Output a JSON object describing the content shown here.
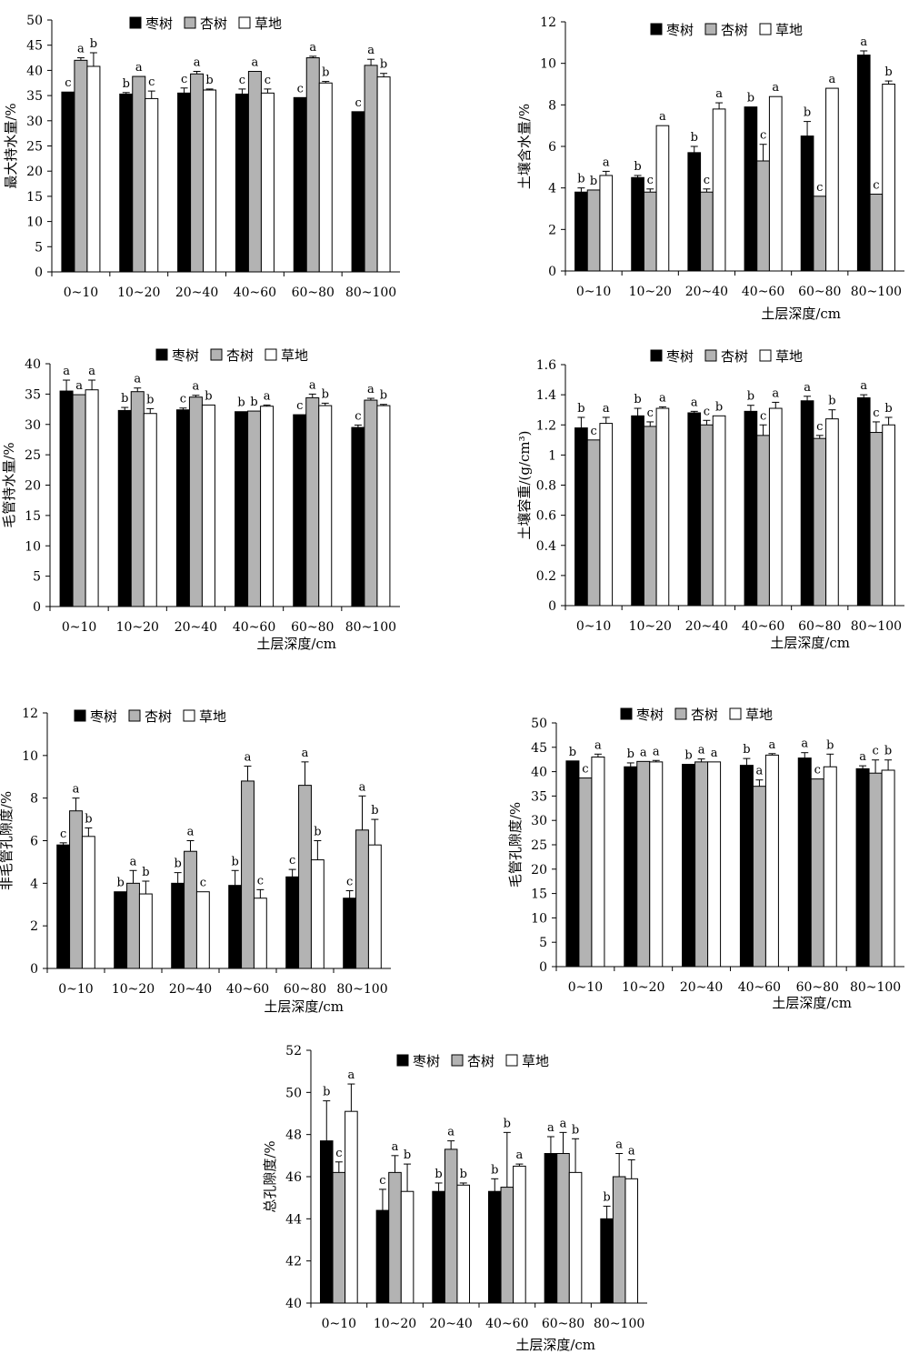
{
  "legend_labels": [
    "枣树",
    "杏树",
    "草地"
  ],
  "series_colors": [
    "#000000",
    "#b3b3b3",
    "#ffffff"
  ],
  "chart_data": [
    {
      "id": "max-water-holding",
      "type": "bar",
      "ylabel": "最大持水量/%",
      "xlabel": "",
      "ylim": [
        0,
        50
      ],
      "yticks": [
        0,
        5,
        10,
        15,
        20,
        25,
        30,
        35,
        40,
        45,
        50
      ],
      "categories": [
        "0~10",
        "10~20",
        "20~40",
        "40~60",
        "60~80",
        "80~100"
      ],
      "series": [
        {
          "name": "枣树",
          "values": [
            35.7,
            35.3,
            35.5,
            35.3,
            34.6,
            31.8
          ],
          "errors": [
            0,
            0.3,
            1.0,
            1.0,
            0,
            0
          ],
          "letters": [
            "c",
            "b",
            "c",
            "c",
            "c",
            "c"
          ]
        },
        {
          "name": "杏树",
          "values": [
            42.0,
            38.8,
            39.3,
            39.8,
            42.5,
            41.0
          ],
          "errors": [
            0.5,
            0,
            0.5,
            0,
            0.3,
            1.2
          ],
          "letters": [
            "a",
            "a",
            "a",
            "a",
            "a",
            "a"
          ]
        },
        {
          "name": "草地",
          "values": [
            40.8,
            34.4,
            36.1,
            35.5,
            37.5,
            38.7
          ],
          "errors": [
            2.7,
            1.5,
            0.2,
            0.8,
            0.3,
            0.7
          ],
          "letters": [
            "b",
            "c",
            "b",
            "c",
            "b",
            "b"
          ]
        }
      ]
    },
    {
      "id": "soil-water-content",
      "type": "bar",
      "ylabel": "土壤含水量/%",
      "xlabel": "土层深度/cm",
      "ylim": [
        0,
        12
      ],
      "yticks": [
        0,
        2,
        4,
        6,
        8,
        10,
        12
      ],
      "categories": [
        "0~10",
        "10~20",
        "20~40",
        "40~60",
        "60~80",
        "80~100"
      ],
      "series": [
        {
          "name": "枣树",
          "values": [
            3.8,
            4.5,
            5.7,
            7.9,
            6.5,
            10.4
          ],
          "errors": [
            0.2,
            0.1,
            0.3,
            0,
            0.7,
            0.2
          ],
          "letters": [
            "b",
            "b",
            "b",
            "b",
            "b",
            "a"
          ]
        },
        {
          "name": "杏树",
          "values": [
            3.9,
            3.8,
            3.8,
            5.3,
            3.6,
            3.7
          ],
          "errors": [
            0,
            0.15,
            0.15,
            0.8,
            0,
            0
          ],
          "letters": [
            "b",
            "c",
            "c",
            "c",
            "c",
            "c"
          ]
        },
        {
          "name": "草地",
          "values": [
            4.6,
            7.0,
            7.8,
            8.4,
            8.8,
            9.0
          ],
          "errors": [
            0.2,
            0,
            0.3,
            0,
            0,
            0.15
          ],
          "letters": [
            "a",
            "a",
            "a",
            "a",
            "a",
            "b"
          ]
        }
      ]
    },
    {
      "id": "capillary-water-holding",
      "type": "bar",
      "ylabel": "毛管持水量/%",
      "xlabel": "土层深度/cm",
      "ylim": [
        0,
        40
      ],
      "yticks": [
        0,
        5,
        10,
        15,
        20,
        25,
        30,
        35,
        40
      ],
      "categories": [
        "0~10",
        "10~20",
        "20~40",
        "40~60",
        "60~80",
        "80~100"
      ],
      "series": [
        {
          "name": "枣树",
          "values": [
            35.5,
            32.3,
            32.4,
            32.1,
            31.6,
            29.5
          ],
          "errors": [
            1.8,
            0.5,
            0.3,
            0,
            0,
            0.4
          ],
          "letters": [
            "a",
            "b",
            "c",
            "b",
            "c",
            "c"
          ]
        },
        {
          "name": "杏树",
          "values": [
            34.9,
            35.4,
            34.5,
            32.2,
            34.4,
            34.0
          ],
          "errors": [
            0,
            0.6,
            0.3,
            0,
            0.6,
            0.3
          ],
          "letters": [
            "a",
            "a",
            "a",
            "b",
            "a",
            "a"
          ]
        },
        {
          "name": "草地",
          "values": [
            35.7,
            31.8,
            33.2,
            33.0,
            33.1,
            33.1
          ],
          "errors": [
            1.6,
            0.8,
            0,
            0.2,
            0.4,
            0.2
          ],
          "letters": [
            "a",
            "b",
            "b",
            "a",
            "b",
            "b"
          ]
        }
      ]
    },
    {
      "id": "bulk-density",
      "type": "bar",
      "ylabel": "土壤容重/(g/cm³)",
      "xlabel": "土层深度/cm",
      "ylim": [
        0,
        1.6
      ],
      "yticks": [
        0,
        0.2,
        0.4,
        0.6,
        0.8,
        1,
        1.2,
        1.4,
        1.6
      ],
      "categories": [
        "0~10",
        "10~20",
        "20~40",
        "40~60",
        "60~80",
        "80~100"
      ],
      "series": [
        {
          "name": "枣树",
          "values": [
            1.18,
            1.26,
            1.28,
            1.29,
            1.36,
            1.38
          ],
          "errors": [
            0.07,
            0.05,
            0.01,
            0.04,
            0.03,
            0.02
          ],
          "letters": [
            "b",
            "b",
            "a",
            "b",
            "a",
            "a"
          ]
        },
        {
          "name": "杏树",
          "values": [
            1.1,
            1.19,
            1.2,
            1.13,
            1.11,
            1.15
          ],
          "errors": [
            0,
            0.03,
            0.03,
            0.07,
            0.02,
            0.07
          ],
          "letters": [
            "c",
            "c",
            "c",
            "c",
            "c",
            "c"
          ]
        },
        {
          "name": "草地",
          "values": [
            1.21,
            1.31,
            1.26,
            1.31,
            1.24,
            1.2
          ],
          "errors": [
            0.04,
            0.01,
            0,
            0.04,
            0.06,
            0.05
          ],
          "letters": [
            "a",
            "a",
            "b",
            "a",
            "b",
            "b"
          ]
        }
      ]
    },
    {
      "id": "non-capillary-porosity",
      "type": "bar",
      "ylabel": "非毛管孔隙度/%",
      "xlabel": "土层深度/cm",
      "ylim": [
        0,
        12
      ],
      "yticks": [
        0,
        2,
        4,
        6,
        8,
        10,
        12
      ],
      "categories": [
        "0~10",
        "10~20",
        "20~40",
        "40~60",
        "60~80",
        "80~100"
      ],
      "series": [
        {
          "name": "枣树",
          "values": [
            5.8,
            3.6,
            4.0,
            3.9,
            4.3,
            3.3
          ],
          "errors": [
            0.1,
            0,
            0.5,
            0.7,
            0.35,
            0.35
          ],
          "letters": [
            "c",
            "b",
            "b",
            "b",
            "c",
            "c"
          ]
        },
        {
          "name": "杏树",
          "values": [
            7.4,
            4.0,
            5.5,
            8.8,
            8.6,
            6.5
          ],
          "errors": [
            0.6,
            0.6,
            0.5,
            0.7,
            1.1,
            1.6
          ],
          "letters": [
            "a",
            "a",
            "a",
            "a",
            "a",
            "a"
          ]
        },
        {
          "name": "草地",
          "values": [
            6.2,
            3.5,
            3.6,
            3.3,
            5.1,
            5.8
          ],
          "errors": [
            0.4,
            0.6,
            0,
            0.4,
            0.9,
            1.2
          ],
          "letters": [
            "b",
            "b",
            "c",
            "c",
            "b",
            "b"
          ]
        }
      ]
    },
    {
      "id": "capillary-porosity",
      "type": "bar",
      "ylabel": "毛管孔隙度/%",
      "xlabel": "土层深度/cm",
      "ylim": [
        0,
        50
      ],
      "yticks": [
        0,
        5,
        10,
        15,
        20,
        25,
        30,
        35,
        40,
        45,
        50
      ],
      "categories": [
        "0~10",
        "10~20",
        "20~40",
        "40~60",
        "60~80",
        "80~100"
      ],
      "series": [
        {
          "name": "枣树",
          "values": [
            42.2,
            41.0,
            41.5,
            41.3,
            42.8,
            40.6
          ],
          "errors": [
            0,
            0.8,
            0,
            1.4,
            1.1,
            0.6
          ],
          "letters": [
            "b",
            "b",
            "b",
            "b",
            "a",
            "a"
          ]
        },
        {
          "name": "杏树",
          "values": [
            38.7,
            42.1,
            42.0,
            37.0,
            38.5,
            39.7
          ],
          "errors": [
            0,
            0,
            0.6,
            1.3,
            0,
            2.7
          ],
          "letters": [
            "c",
            "a",
            "a",
            "a",
            "c",
            "c"
          ]
        },
        {
          "name": "草地",
          "values": [
            43.0,
            42.0,
            42.0,
            43.4,
            41.0,
            40.3
          ],
          "errors": [
            0.6,
            0.3,
            0,
            0.3,
            2.6,
            2.1
          ],
          "letters": [
            "a",
            "a",
            "a",
            "a",
            "b",
            "b"
          ]
        }
      ]
    },
    {
      "id": "total-porosity",
      "type": "bar",
      "ylabel": "总孔隙度/%",
      "xlabel": "土层深度/cm",
      "ylim": [
        40,
        52
      ],
      "yticks": [
        40,
        42,
        44,
        46,
        48,
        50,
        52
      ],
      "categories": [
        "0~10",
        "10~20",
        "20~40",
        "40~60",
        "60~80",
        "80~100"
      ],
      "series": [
        {
          "name": "枣树",
          "values": [
            47.7,
            44.4,
            45.3,
            45.3,
            47.1,
            44.0
          ],
          "errors": [
            1.9,
            1.0,
            0.4,
            0.6,
            0.8,
            0.6
          ],
          "letters": [
            "b",
            "c",
            "b",
            "b",
            "a",
            "b"
          ]
        },
        {
          "name": "杏树",
          "values": [
            46.2,
            46.2,
            47.3,
            45.5,
            47.1,
            46.0
          ],
          "errors": [
            0.5,
            0.8,
            0.4,
            2.6,
            1.0,
            1.1
          ],
          "letters": [
            "c",
            "a",
            "a",
            "b",
            "a",
            "a"
          ]
        },
        {
          "name": "草地",
          "values": [
            49.1,
            45.3,
            45.6,
            46.5,
            46.2,
            45.9
          ],
          "errors": [
            1.3,
            1.3,
            0.1,
            0.1,
            1.6,
            0.9
          ],
          "letters": [
            "a",
            "b",
            "b",
            "a",
            "b",
            "a"
          ]
        }
      ]
    }
  ]
}
